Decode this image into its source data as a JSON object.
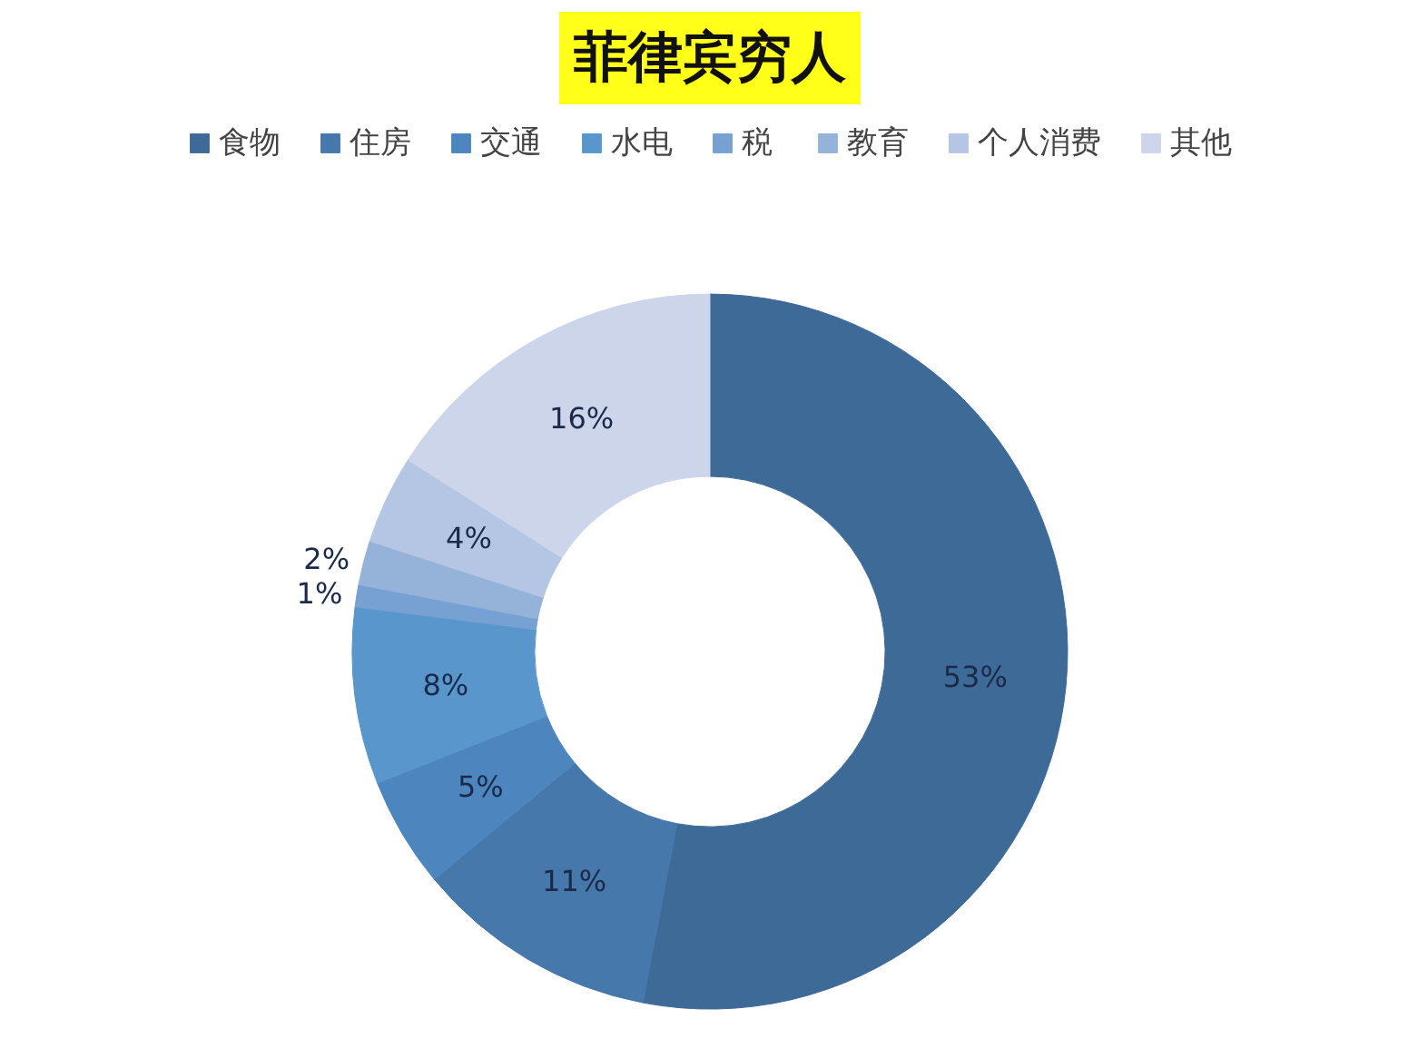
{
  "chart_data": {
    "type": "donut",
    "title": "菲律宾穷人",
    "categories": [
      "食物",
      "住房",
      "交通",
      "水电",
      "税",
      "教育",
      "个人消费",
      "其他"
    ],
    "values": [
      53,
      11,
      5,
      8,
      1,
      2,
      4,
      16
    ],
    "colors": [
      "#3e6a98",
      "#4678ab",
      "#4d86bf",
      "#5896cc",
      "#76a1d2",
      "#95b2d8",
      "#b4c6e3",
      "#ccd5ea"
    ],
    "value_labels": [
      "53%",
      "11%",
      "5%",
      "8%",
      "1%",
      "2%",
      "4%",
      "16%"
    ],
    "legend": "top"
  }
}
